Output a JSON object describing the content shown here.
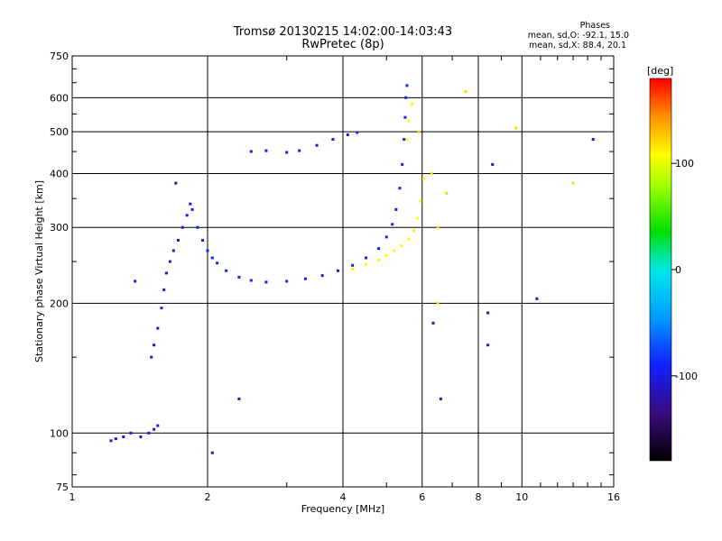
{
  "chart_data": {
    "type": "scatter",
    "title": "Tromsø 20130215 14:02:00-14:03:43",
    "subtitle": "RwPretec (8p)",
    "xlabel": "Frequency [MHz]",
    "ylabel": "Stationary phase Virtual Height [km]",
    "xscale": "log",
    "yscale": "log",
    "xlim": [
      1,
      16
    ],
    "ylim": [
      75,
      750
    ],
    "x_ticks": [
      1,
      2,
      4,
      6,
      8,
      10,
      16
    ],
    "x_tick_labels": [
      "1",
      "2",
      "4",
      "6",
      "8",
      "10",
      "16"
    ],
    "y_ticks": [
      75,
      100,
      200,
      300,
      400,
      500,
      600,
      750
    ],
    "y_tick_labels": [
      "75",
      "100",
      "200",
      "300",
      "400",
      "500",
      "600",
      "750"
    ],
    "grid": true,
    "annotation": {
      "heading": "Phases",
      "line1": "mean, sd,O: -92.1, 15.0",
      "line2": "mean, sd,X: 88.4, 20.1"
    },
    "colorbar": {
      "label": "[deg]",
      "range": [
        -180,
        180
      ],
      "ticks": [
        100,
        0,
        -100
      ],
      "tick_labels": [
        "100",
        "0",
        "-100"
      ]
    },
    "traces": [
      {
        "phase": -100,
        "points": [
          [
            1.22,
            96
          ],
          [
            1.25,
            97
          ],
          [
            1.3,
            98
          ],
          [
            1.35,
            100
          ],
          [
            1.42,
            98
          ],
          [
            1.48,
            100
          ],
          [
            1.52,
            102
          ],
          [
            1.55,
            104
          ]
        ]
      },
      {
        "phase": -100,
        "points": [
          [
            1.5,
            150
          ],
          [
            1.52,
            160
          ],
          [
            1.55,
            175
          ],
          [
            1.58,
            195
          ],
          [
            1.6,
            215
          ],
          [
            1.62,
            235
          ],
          [
            1.65,
            250
          ],
          [
            1.68,
            265
          ],
          [
            1.72,
            280
          ],
          [
            1.76,
            300
          ],
          [
            1.8,
            320
          ],
          [
            1.83,
            340
          ]
        ]
      },
      {
        "phase": -90,
        "points": [
          [
            1.85,
            330
          ],
          [
            1.9,
            300
          ],
          [
            1.95,
            280
          ],
          [
            2.0,
            265
          ],
          [
            2.05,
            255
          ],
          [
            2.1,
            248
          ],
          [
            2.2,
            238
          ],
          [
            2.35,
            230
          ],
          [
            2.5,
            226
          ],
          [
            2.7,
            224
          ],
          [
            3.0,
            225
          ],
          [
            3.3,
            228
          ],
          [
            3.6,
            232
          ],
          [
            3.9,
            238
          ],
          [
            4.2,
            245
          ],
          [
            4.5,
            255
          ],
          [
            4.8,
            268
          ],
          [
            5.0,
            285
          ],
          [
            5.15,
            305
          ],
          [
            5.25,
            330
          ],
          [
            5.35,
            370
          ],
          [
            5.42,
            420
          ],
          [
            5.47,
            480
          ],
          [
            5.5,
            540
          ],
          [
            5.52,
            600
          ],
          [
            5.55,
            640
          ]
        ]
      },
      {
        "phase": -100,
        "points": [
          [
            2.5,
            450
          ],
          [
            2.7,
            452
          ],
          [
            3.0,
            448
          ],
          [
            3.2,
            452
          ],
          [
            3.5,
            465
          ],
          [
            3.8,
            480
          ],
          [
            4.1,
            492
          ],
          [
            4.3,
            498
          ]
        ]
      },
      {
        "phase": 110,
        "points": [
          [
            4.2,
            240
          ],
          [
            4.5,
            246
          ],
          [
            4.8,
            252
          ],
          [
            5.0,
            258
          ],
          [
            5.2,
            265
          ],
          [
            5.4,
            272
          ],
          [
            5.6,
            282
          ],
          [
            5.75,
            295
          ],
          [
            5.85,
            315
          ],
          [
            5.95,
            345
          ],
          [
            6.05,
            390
          ]
        ]
      },
      {
        "phase": 110,
        "points": [
          [
            5.55,
            480
          ],
          [
            5.6,
            530
          ],
          [
            5.7,
            580
          ]
        ]
      },
      {
        "phase": 120,
        "points": [
          [
            5.9,
            500
          ],
          [
            6.3,
            400
          ],
          [
            6.5,
            300
          ],
          [
            6.5,
            200
          ],
          [
            6.8,
            360
          ],
          [
            7.5,
            620
          ],
          [
            9.7,
            510
          ],
          [
            13.0,
            380
          ]
        ]
      },
      {
        "phase": -110,
        "points": [
          [
            1.38,
            225
          ],
          [
            1.7,
            380
          ],
          [
            2.35,
            120
          ],
          [
            6.35,
            180
          ],
          [
            6.6,
            120
          ],
          [
            8.4,
            190
          ],
          [
            8.4,
            160
          ],
          [
            8.6,
            420
          ],
          [
            10.8,
            205
          ],
          [
            14.4,
            480
          ],
          [
            2.05,
            90
          ]
        ]
      }
    ]
  }
}
